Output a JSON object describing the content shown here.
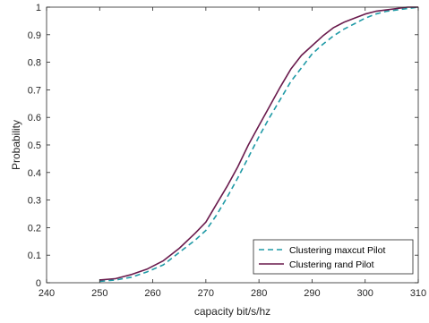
{
  "chart_data": {
    "type": "line",
    "xlabel": "capacity bit/s/hz",
    "ylabel": "Probability",
    "xlim": [
      240,
      310
    ],
    "ylim": [
      0,
      1
    ],
    "x_ticks": [
      240,
      250,
      260,
      270,
      280,
      290,
      300,
      310
    ],
    "y_ticks": [
      0,
      0.1,
      0.2,
      0.3,
      0.4,
      0.5,
      0.6,
      0.7,
      0.8,
      0.9,
      1
    ],
    "y_tick_labels": [
      "0",
      "0.1",
      "0.2",
      "0.3",
      "0.4",
      "0.5",
      "0.6",
      "0.7",
      "0.8",
      "0.9",
      "1"
    ],
    "grid": false,
    "legend_position": "bottom-right",
    "series": [
      {
        "name": "Clustering maxcut Pilot",
        "color": "#1f9aa6",
        "style": "dashed",
        "x": [
          250,
          253,
          256,
          259,
          262,
          265,
          268,
          270,
          272,
          274,
          276,
          278,
          280,
          282,
          284,
          286,
          288,
          290,
          292,
          294,
          296,
          298,
          300,
          302,
          304,
          306,
          308,
          310
        ],
        "y": [
          0.005,
          0.01,
          0.02,
          0.04,
          0.065,
          0.11,
          0.155,
          0.19,
          0.245,
          0.31,
          0.38,
          0.455,
          0.53,
          0.6,
          0.665,
          0.73,
          0.78,
          0.83,
          0.865,
          0.895,
          0.92,
          0.94,
          0.96,
          0.975,
          0.985,
          0.99,
          0.995,
          1.0
        ]
      },
      {
        "name": "Clustering rand Pilot",
        "color": "#6a1b4d",
        "style": "solid",
        "x": [
          250,
          253,
          256,
          259,
          262,
          265,
          268,
          270,
          272,
          274,
          276,
          278,
          280,
          282,
          284,
          286,
          288,
          290,
          292,
          294,
          296,
          298,
          300,
          302,
          304,
          306,
          308,
          310
        ],
        "y": [
          0.01,
          0.015,
          0.03,
          0.05,
          0.08,
          0.125,
          0.18,
          0.22,
          0.285,
          0.35,
          0.42,
          0.5,
          0.57,
          0.64,
          0.71,
          0.775,
          0.825,
          0.86,
          0.895,
          0.925,
          0.945,
          0.96,
          0.975,
          0.985,
          0.99,
          0.995,
          1.0,
          1.0
        ]
      }
    ]
  }
}
